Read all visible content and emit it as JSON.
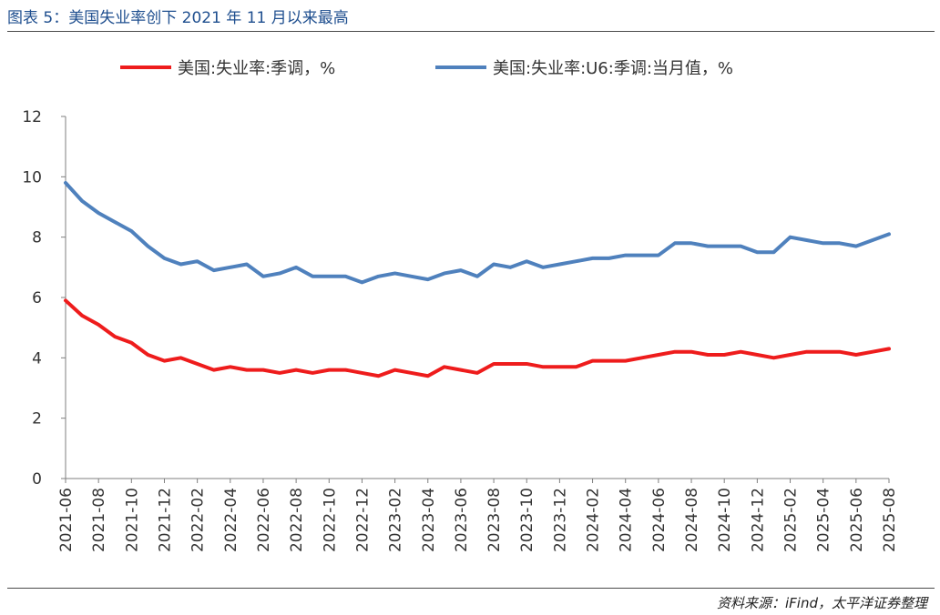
{
  "header": {
    "title": "图表 5：美国失业率创下 2021 年 11 月以来最高"
  },
  "footer": {
    "source": "资料来源：iFind，太平洋证券整理"
  },
  "colors": {
    "red_series": "#ee1c1c",
    "blue_series": "#4f81bd",
    "title": "#1f4f8f"
  },
  "chart_data": {
    "type": "line",
    "ylim": [
      0,
      12
    ],
    "yticks": [
      0,
      2,
      4,
      6,
      8,
      10,
      12
    ],
    "grid": false,
    "legend_position": "top",
    "x": [
      "2021-06",
      "2021-07",
      "2021-08",
      "2021-09",
      "2021-10",
      "2021-11",
      "2021-12",
      "2022-01",
      "2022-02",
      "2022-03",
      "2022-04",
      "2022-05",
      "2022-06",
      "2022-07",
      "2022-08",
      "2022-09",
      "2022-10",
      "2022-11",
      "2022-12",
      "2023-01",
      "2023-02",
      "2023-03",
      "2023-04",
      "2023-05",
      "2023-06",
      "2023-07",
      "2023-08",
      "2023-09",
      "2023-10",
      "2023-11",
      "2023-12",
      "2024-01",
      "2024-02",
      "2024-03",
      "2024-04",
      "2024-05",
      "2024-06",
      "2024-07",
      "2024-08",
      "2024-09",
      "2024-10",
      "2024-11",
      "2024-12",
      "2025-01",
      "2025-02",
      "2025-03",
      "2025-04",
      "2025-05",
      "2025-06",
      "2025-07",
      "2025-08"
    ],
    "xtick_labels": [
      "2021-06",
      "2021-08",
      "2021-10",
      "2021-12",
      "2022-02",
      "2022-04",
      "2022-06",
      "2022-08",
      "2022-10",
      "2022-12",
      "2023-02",
      "2023-04",
      "2023-06",
      "2023-08",
      "2023-10",
      "2023-12",
      "2024-02",
      "2024-04",
      "2024-06",
      "2024-08",
      "2024-10",
      "2024-12",
      "2025-02",
      "2025-04",
      "2025-06",
      "2025-08"
    ],
    "series": [
      {
        "name": "美国:失业率:季调，%",
        "color": "#ee1c1c",
        "values": [
          5.9,
          5.4,
          5.1,
          4.7,
          4.5,
          4.1,
          3.9,
          4.0,
          3.8,
          3.6,
          3.7,
          3.6,
          3.6,
          3.5,
          3.6,
          3.5,
          3.6,
          3.6,
          3.5,
          3.4,
          3.6,
          3.5,
          3.4,
          3.7,
          3.6,
          3.5,
          3.8,
          3.8,
          3.8,
          3.7,
          3.7,
          3.7,
          3.9,
          3.9,
          3.9,
          4.0,
          4.1,
          4.2,
          4.2,
          4.1,
          4.1,
          4.2,
          4.1,
          4.0,
          4.1,
          4.2,
          4.2,
          4.2,
          4.1,
          4.2,
          4.3
        ]
      },
      {
        "name": "美国:失业率:U6:季调:当月值，%",
        "color": "#4f81bd",
        "values": [
          9.8,
          9.2,
          8.8,
          8.5,
          8.2,
          7.7,
          7.3,
          7.1,
          7.2,
          6.9,
          7.0,
          7.1,
          6.7,
          6.8,
          7.0,
          6.7,
          6.7,
          6.7,
          6.5,
          6.7,
          6.8,
          6.7,
          6.6,
          6.8,
          6.9,
          6.7,
          7.1,
          7.0,
          7.2,
          7.0,
          7.1,
          7.2,
          7.3,
          7.3,
          7.4,
          7.4,
          7.4,
          7.8,
          7.8,
          7.7,
          7.7,
          7.7,
          7.5,
          7.5,
          8.0,
          7.9,
          7.8,
          7.8,
          7.7,
          7.9,
          8.1
        ]
      }
    ]
  }
}
